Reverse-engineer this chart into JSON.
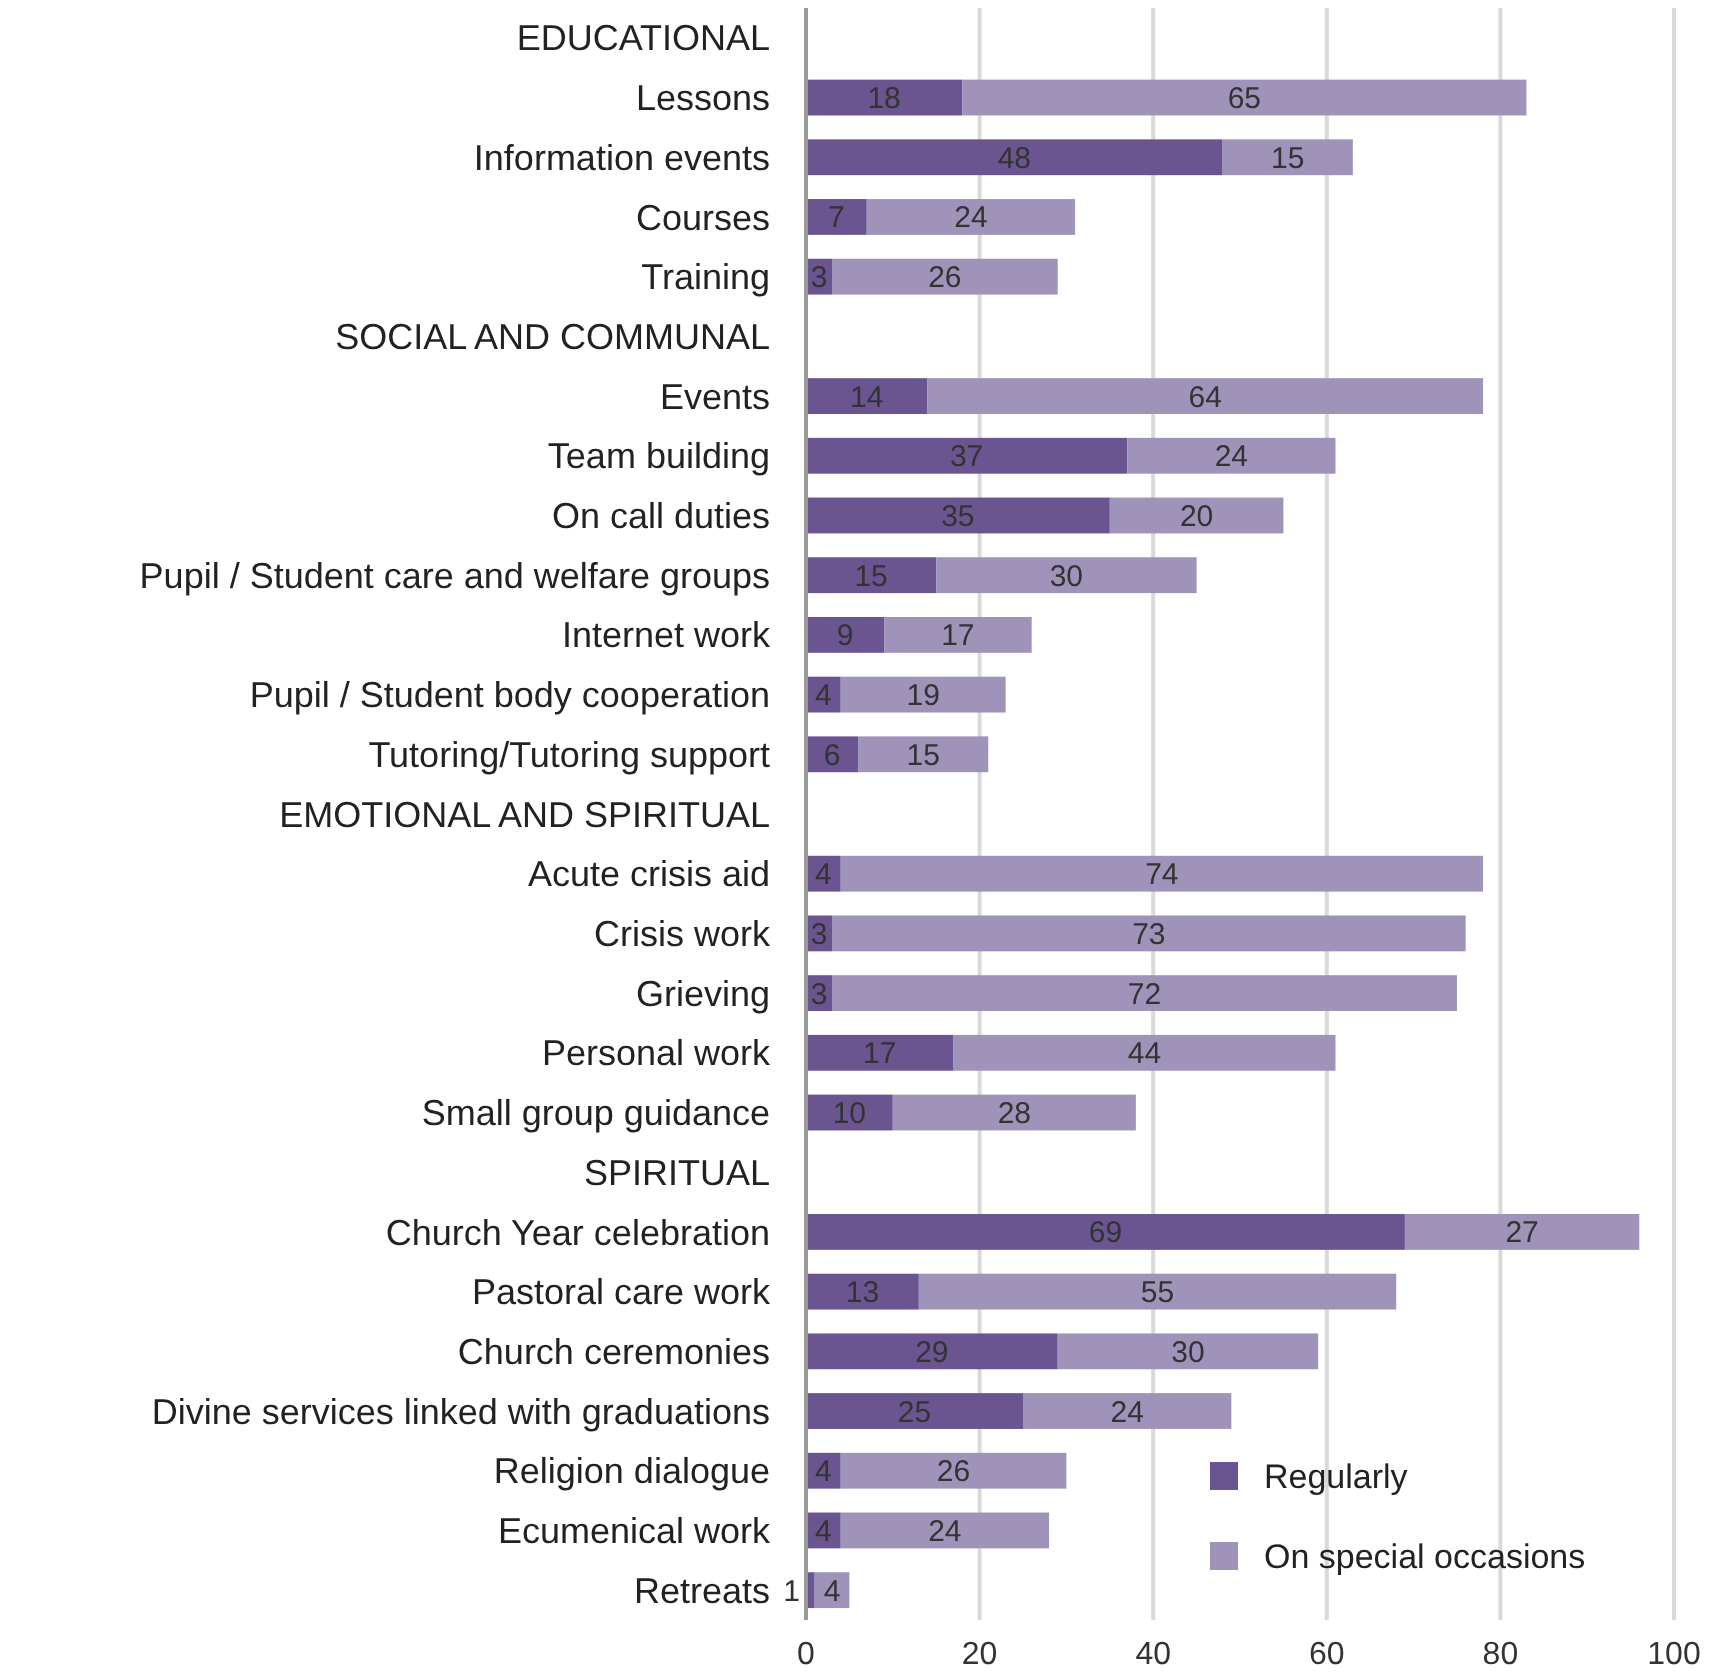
{
  "chart_data": {
    "type": "bar",
    "orientation": "horizontal",
    "stacked": true,
    "categories": [
      "EDUCATIONAL",
      "Lessons",
      "Information events",
      "Courses",
      "Training",
      "SOCIAL AND COMMUNAL",
      "Events",
      "Team building",
      "On call duties",
      "Pupil / Student care and welfare groups",
      "Internet work",
      "Pupil / Student body cooperation",
      "Tutoring/Tutoring support",
      "EMOTIONAL AND SPIRITUAL",
      "Acute crisis aid",
      "Crisis work",
      "Grieving",
      "Personal work",
      "Small group guidance",
      "SPIRITUAL",
      "Church Year celebration",
      "Pastoral care work",
      "Church ceremonies",
      "Divine services linked with graduations",
      "Religion dialogue",
      "Ecumenical work",
      "Retreats"
    ],
    "series": [
      {
        "name": "Regularly",
        "color": "#6a5591",
        "values": [
          null,
          18,
          48,
          7,
          3,
          null,
          14,
          37,
          35,
          15,
          9,
          4,
          6,
          null,
          4,
          3,
          3,
          17,
          10,
          null,
          69,
          13,
          29,
          25,
          4,
          4,
          1
        ]
      },
      {
        "name": "On special occasions",
        "color": "#a093ba",
        "values": [
          null,
          65,
          15,
          24,
          26,
          null,
          64,
          24,
          20,
          30,
          17,
          19,
          15,
          null,
          74,
          73,
          72,
          44,
          28,
          null,
          27,
          55,
          30,
          24,
          26,
          24,
          4
        ]
      }
    ],
    "xlim": [
      0,
      100
    ],
    "xticks": [
      0,
      20,
      40,
      60,
      80,
      100
    ],
    "grid": "x",
    "legend": "bottom right",
    "data_labels": true
  }
}
